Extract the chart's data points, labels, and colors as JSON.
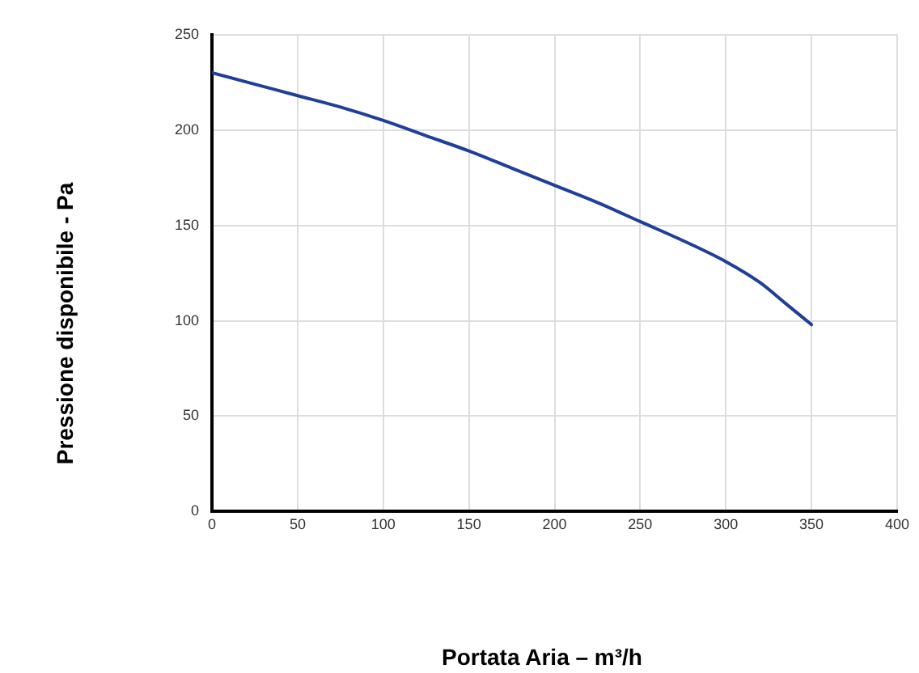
{
  "chart_data": {
    "type": "line",
    "xlabel": "Portata Aria – m³/h",
    "ylabel": "Pressione disponibile - Pa",
    "x": [
      0,
      25,
      50,
      75,
      100,
      125,
      150,
      175,
      200,
      225,
      250,
      275,
      300,
      320,
      335,
      350
    ],
    "series": [
      {
        "color": "#1f3f99",
        "values": [
          230,
          224,
          218,
          212,
          205,
          197,
          189,
          180,
          171,
          162,
          152,
          142,
          131,
          120,
          109,
          98
        ]
      }
    ],
    "xlim": [
      0,
      400
    ],
    "xticks": [
      0,
      50,
      100,
      150,
      200,
      250,
      300,
      350,
      400
    ],
    "ylim": [
      0,
      250
    ],
    "yticks": [
      0,
      50,
      100,
      150,
      200,
      250
    ],
    "grid": true,
    "legend": false,
    "marker": "none",
    "line_style": "solid"
  }
}
